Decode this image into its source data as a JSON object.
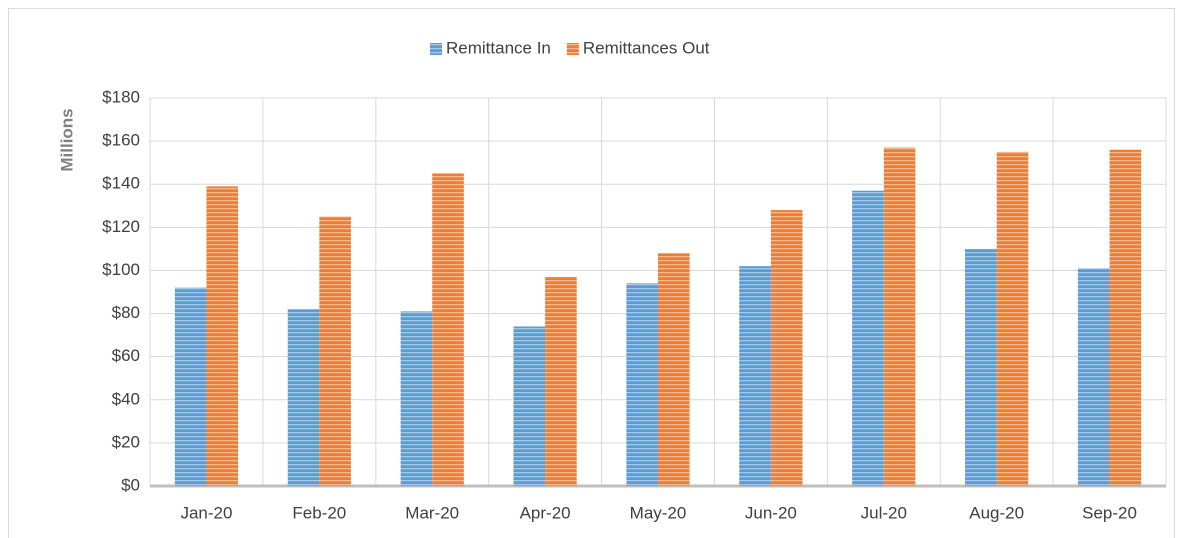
{
  "chart_data": {
    "type": "bar",
    "y_label": "Millions",
    "categories": [
      "Jan-20",
      "Feb-20",
      "Mar-20",
      "Apr-20",
      "May-20",
      "Jun-20",
      "Jul-20",
      "Aug-20",
      "Sep-20"
    ],
    "series": [
      {
        "name": "Remittance In",
        "color": "#5b9bd5",
        "values": [
          92,
          82,
          81,
          74,
          94,
          102,
          137,
          110,
          101
        ]
      },
      {
        "name": "Remittances Out",
        "color": "#ed7d31",
        "values": [
          139,
          125,
          145,
          97,
          108,
          128,
          157,
          155,
          156
        ]
      }
    ],
    "ylim": [
      0,
      180
    ],
    "yticks": [
      {
        "value": 0,
        "label": "$0"
      },
      {
        "value": 20,
        "label": "$20"
      },
      {
        "value": 40,
        "label": "$40"
      },
      {
        "value": 60,
        "label": "$60"
      },
      {
        "value": 80,
        "label": "$80"
      },
      {
        "value": 100,
        "label": "$100"
      },
      {
        "value": 120,
        "label": "$120"
      },
      {
        "value": 140,
        "label": "$140"
      },
      {
        "value": 160,
        "label": "$160"
      },
      {
        "value": 180,
        "label": "$180"
      }
    ],
    "grid": true,
    "legend": "top"
  }
}
